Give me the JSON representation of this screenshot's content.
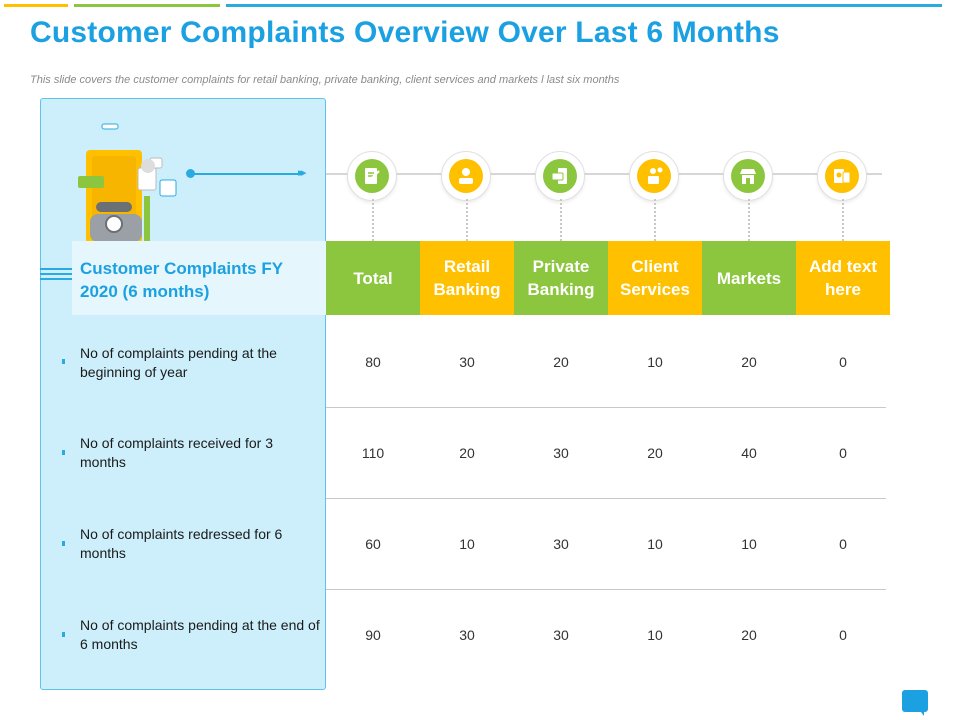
{
  "title": "Customer Complaints Overview Over Last 6 Months",
  "subtitle": "This slide covers the customer complaints for retail banking, private banking, client services and markets l last six months",
  "table": {
    "header_first": "Customer Complaints FY 2020 (6 months)",
    "columns": [
      {
        "label": "Total",
        "color": "#8cc63f",
        "icon": "certificate-icon"
      },
      {
        "label": "Retail Banking",
        "color": "#ffc000",
        "icon": "customer-service-icon"
      },
      {
        "label": "Private Banking",
        "color": "#8cc63f",
        "icon": "mobile-payment-icon"
      },
      {
        "label": "Client Services",
        "color": "#ffc000",
        "icon": "security-lock-icon"
      },
      {
        "label": "Markets",
        "color": "#8cc63f",
        "icon": "market-store-icon"
      },
      {
        "label": "Add text here",
        "color": "#ffc000",
        "icon": "document-chart-icon"
      }
    ],
    "rows": [
      {
        "label": "No of complaints pending at the beginning of year",
        "values": [
          "80",
          "30",
          "20",
          "10",
          "20",
          "0"
        ]
      },
      {
        "label": "No of complaints received for 3 months",
        "values": [
          "110",
          "20",
          "30",
          "20",
          "40",
          "0"
        ]
      },
      {
        "label": "No of complaints redressed for 6 months",
        "values": [
          "60",
          "10",
          "30",
          "10",
          "10",
          "0"
        ]
      },
      {
        "label": "No of complaints pending at the end of 6 months",
        "values": [
          "90",
          "30",
          "30",
          "10",
          "20",
          "0"
        ]
      }
    ]
  },
  "colors": {
    "accent_blue": "#1ba1e2",
    "green": "#8cc63f",
    "yellow": "#ffc000",
    "panel": "#cdeffb"
  }
}
